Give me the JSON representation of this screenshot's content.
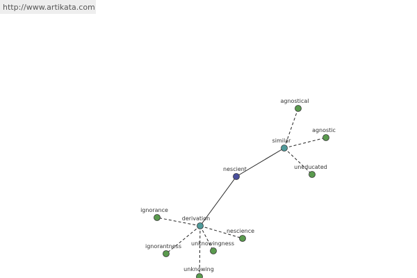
{
  "header": {
    "url": "http://www.artikata.com"
  },
  "nodes": [
    {
      "label": "nescient"
    },
    {
      "label": "similar"
    },
    {
      "label": "derivation"
    },
    {
      "label": "agnostical"
    },
    {
      "label": "agnostic"
    },
    {
      "label": "uneducated"
    },
    {
      "label": "ignorance"
    },
    {
      "label": "ignorantness"
    },
    {
      "label": "unknowingness"
    },
    {
      "label": "nescience"
    },
    {
      "label": "unknowing"
    }
  ]
}
